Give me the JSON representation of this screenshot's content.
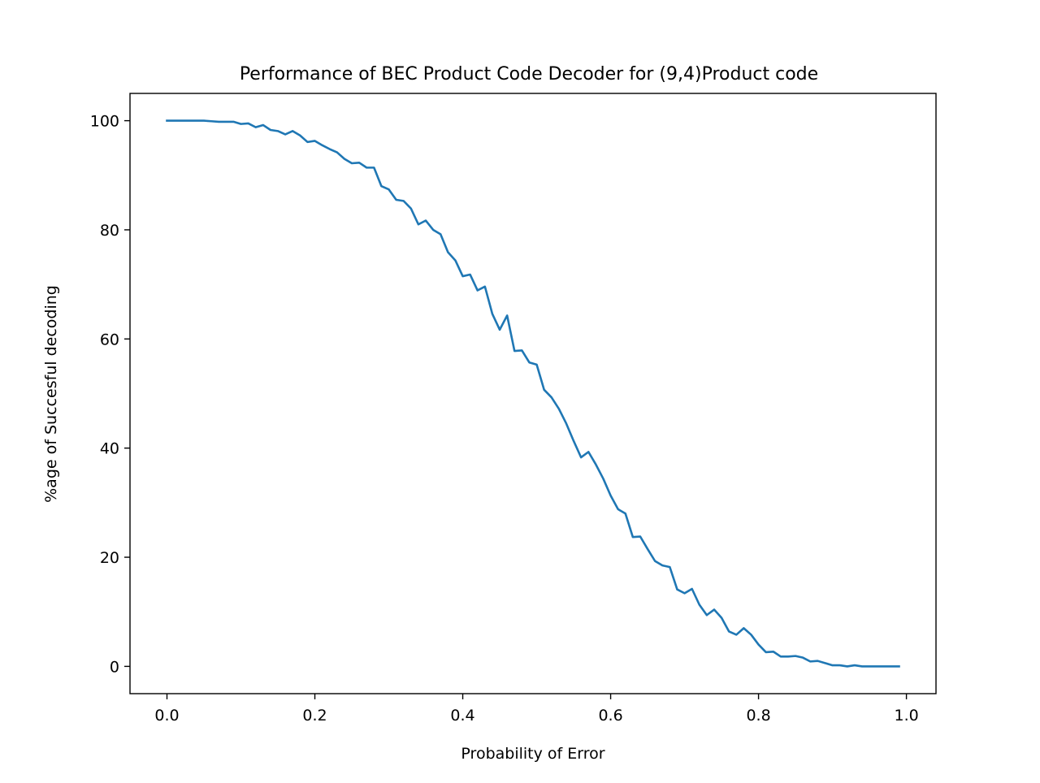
{
  "chart_data": {
    "type": "line",
    "title": "Performance of BEC Product Code Decoder for (9,4)Product code",
    "xlabel": "Probability of Error",
    "ylabel": "%age of Succesful decoding",
    "xlim": [
      -0.05,
      1.04
    ],
    "ylim": [
      -5,
      105
    ],
    "xticks": [
      0.0,
      0.2,
      0.4,
      0.6,
      0.8,
      1.0
    ],
    "xtick_labels": [
      "0.0",
      "0.2",
      "0.4",
      "0.6",
      "0.8",
      "1.0"
    ],
    "yticks": [
      0,
      20,
      40,
      60,
      80,
      100
    ],
    "ytick_labels": [
      "0",
      "20",
      "40",
      "60",
      "80",
      "100"
    ],
    "grid": false,
    "legend": "none",
    "series": [
      {
        "color": "#1f77b4",
        "x": [
          0.0,
          0.01,
          0.02,
          0.03,
          0.04,
          0.05,
          0.06,
          0.07,
          0.08,
          0.09,
          0.1,
          0.11,
          0.12,
          0.13,
          0.14,
          0.15,
          0.16,
          0.17,
          0.18,
          0.19,
          0.2,
          0.21,
          0.22,
          0.23,
          0.24,
          0.25,
          0.26,
          0.27,
          0.28,
          0.29,
          0.3,
          0.31,
          0.32,
          0.33,
          0.34,
          0.35,
          0.36,
          0.37,
          0.38,
          0.39,
          0.4,
          0.41,
          0.42,
          0.43,
          0.44,
          0.45,
          0.46,
          0.47,
          0.48,
          0.49,
          0.5,
          0.51,
          0.52,
          0.53,
          0.54,
          0.55,
          0.56,
          0.57,
          0.58,
          0.59,
          0.6,
          0.61,
          0.62,
          0.63,
          0.64,
          0.65,
          0.66,
          0.67,
          0.68,
          0.69,
          0.7,
          0.71,
          0.72,
          0.73,
          0.74,
          0.75,
          0.76,
          0.77,
          0.78,
          0.79,
          0.8,
          0.81,
          0.82,
          0.83,
          0.84,
          0.85,
          0.86,
          0.87,
          0.88,
          0.89,
          0.9,
          0.91,
          0.92,
          0.93,
          0.94,
          0.95,
          0.96,
          0.97,
          0.98,
          0.99
        ],
        "y": [
          100,
          100,
          100,
          100,
          100,
          100,
          99.9,
          99.8,
          99.8,
          99.8,
          99.4,
          99.5,
          98.8,
          99.2,
          98.3,
          98.1,
          97.5,
          98.1,
          97.3,
          96.1,
          96.3,
          95.5,
          94.8,
          94.2,
          93.0,
          92.2,
          92.3,
          91.4,
          91.4,
          88.0,
          87.4,
          85.5,
          85.3,
          83.9,
          81.0,
          81.7,
          80.0,
          79.2,
          75.9,
          74.4,
          71.5,
          71.8,
          68.9,
          69.6,
          64.6,
          61.7,
          64.3,
          57.8,
          57.9,
          55.7,
          55.3,
          50.7,
          49.3,
          47.2,
          44.5,
          41.3,
          38.3,
          39.3,
          37.0,
          34.4,
          31.3,
          28.8,
          28.0,
          23.7,
          23.8,
          21.5,
          19.3,
          18.5,
          18.2,
          14.1,
          13.4,
          14.2,
          11.3,
          9.4,
          10.4,
          8.9,
          6.4,
          5.8,
          7.0,
          5.8,
          4.0,
          2.6,
          2.7,
          1.8,
          1.8,
          1.9,
          1.6,
          0.9,
          1.0,
          0.6,
          0.2,
          0.2,
          0.0,
          0.2,
          0.0,
          0.0,
          0.0,
          0.0,
          0.0,
          0.0
        ]
      }
    ]
  }
}
